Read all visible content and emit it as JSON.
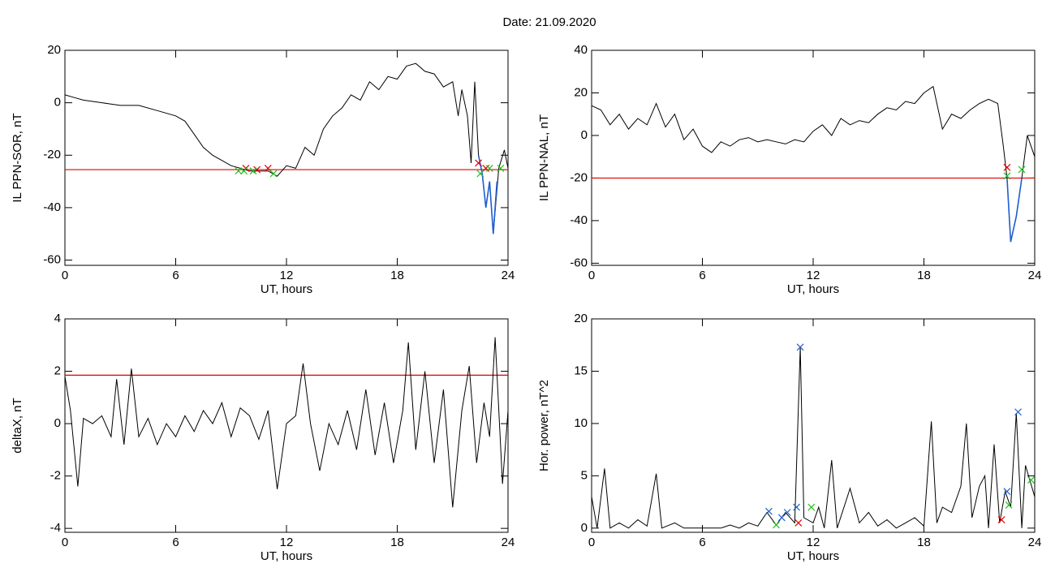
{
  "title": "Date:  21.09.2020",
  "chart_data": [
    {
      "type": "line",
      "xlabel": "UT, hours",
      "ylabel": "IL PPN-SOR, nT",
      "xlim": [
        0,
        24
      ],
      "xticks": [
        0,
        6,
        12,
        18,
        24
      ],
      "ylim": [
        -62,
        20
      ],
      "yticks": [
        -60,
        -40,
        -20,
        0,
        20
      ],
      "threshold": -25.5,
      "threshold_color": "#e00000",
      "series": [
        {
          "marker": "line",
          "color": "#000000",
          "x": [
            0,
            0.5,
            1,
            2,
            3,
            4,
            5,
            6,
            6.5,
            7,
            7.5,
            8,
            8.5,
            9,
            9.5,
            10,
            10.5,
            11,
            11.5,
            12,
            12.5,
            13,
            13.5,
            14,
            14.5,
            15,
            15.5,
            16,
            16.5,
            17,
            17.5,
            18,
            18.5,
            19,
            19.5,
            20,
            20.5,
            21,
            21.3,
            21.5,
            21.8,
            22,
            22.2,
            22.4,
            22.6,
            22.8,
            23,
            23.2,
            23.5,
            23.8,
            24
          ],
          "values": [
            3,
            2,
            1,
            0,
            -1,
            -1,
            -3,
            -5,
            -7,
            -12,
            -17,
            -20,
            -22,
            -24,
            -25,
            -26,
            -26,
            -26,
            -28,
            -24,
            -25,
            -17,
            -20,
            -10,
            -5,
            -2,
            3,
            1,
            8,
            5,
            10,
            9,
            14,
            15,
            12,
            11,
            6,
            8,
            -5,
            5,
            -5,
            -23,
            8,
            -20,
            -27,
            -40,
            -30,
            -50,
            -25,
            -18,
            -25
          ]
        },
        {
          "marker": "line",
          "color": "#1f5fd0",
          "x": [
            22.4,
            22.6,
            22.8,
            23,
            23.2,
            23.4
          ],
          "values": [
            -20,
            -27,
            -40,
            -30,
            -50,
            -30
          ]
        },
        {
          "marker": "cross",
          "color": "#e00000",
          "x": [
            9.8,
            10.4,
            11,
            22.4,
            22.8
          ],
          "values": [
            -25,
            -25.5,
            -25,
            -23,
            -25
          ]
        },
        {
          "marker": "cross",
          "color": "#20c020",
          "x": [
            9.4,
            9.7,
            10.2,
            11.3,
            22.5,
            23,
            23.6
          ],
          "values": [
            -26,
            -26,
            -26,
            -27,
            -27,
            -25,
            -25
          ]
        }
      ]
    },
    {
      "type": "line",
      "xlabel": "UT, hours",
      "ylabel": "IL PPN-NAL, nT",
      "xlim": [
        0,
        24
      ],
      "xticks": [
        0,
        6,
        12,
        18,
        24
      ],
      "ylim": [
        -61,
        40
      ],
      "yticks": [
        -60,
        -40,
        -20,
        0,
        20,
        40
      ],
      "threshold": -20,
      "threshold_color": "#e00000",
      "series": [
        {
          "marker": "line",
          "color": "#000000",
          "x": [
            0,
            0.5,
            1,
            1.5,
            2,
            2.5,
            3,
            3.5,
            4,
            4.5,
            5,
            5.5,
            6,
            6.5,
            7,
            7.5,
            8,
            8.5,
            9,
            9.5,
            10,
            10.5,
            11,
            11.5,
            12,
            12.5,
            13,
            13.5,
            14,
            14.5,
            15,
            15.5,
            16,
            16.5,
            17,
            17.5,
            18,
            18.5,
            19,
            19.5,
            20,
            20.5,
            21,
            21.5,
            22,
            22.3,
            22.5,
            22.7,
            23,
            23.3,
            23.6,
            24
          ],
          "values": [
            14,
            12,
            5,
            10,
            3,
            8,
            5,
            15,
            4,
            10,
            -2,
            3,
            -5,
            -8,
            -3,
            -5,
            -2,
            -1,
            -3,
            -2,
            -3,
            -4,
            -2,
            -3,
            2,
            5,
            0,
            8,
            5,
            7,
            6,
            10,
            13,
            12,
            16,
            15,
            20,
            23,
            3,
            10,
            8,
            12,
            15,
            17,
            15,
            -5,
            -20,
            -50,
            -38,
            -20,
            0,
            -10
          ]
        },
        {
          "marker": "line",
          "color": "#1f5fd0",
          "x": [
            22.5,
            22.7,
            23,
            23.3
          ],
          "values": [
            -20,
            -50,
            -38,
            -20
          ]
        },
        {
          "marker": "cross",
          "color": "#e00000",
          "x": [
            22.5
          ],
          "values": [
            -15
          ]
        },
        {
          "marker": "cross",
          "color": "#20c020",
          "x": [
            22.5,
            23.3
          ],
          "values": [
            -19,
            -16
          ]
        }
      ]
    },
    {
      "type": "line",
      "xlabel": "UT, hours",
      "ylabel": "deltaX, nT",
      "xlim": [
        0,
        24
      ],
      "xticks": [
        0,
        6,
        12,
        18,
        24
      ],
      "ylim": [
        -4.15,
        4
      ],
      "yticks": [
        -4,
        -2,
        0,
        2,
        4
      ],
      "threshold": 1.85,
      "threshold_color": "#e00000",
      "series": [
        {
          "marker": "line",
          "color": "#000000",
          "x": [
            0,
            0.3,
            0.7,
            1,
            1.5,
            2,
            2.5,
            2.8,
            3.2,
            3.6,
            4,
            4.5,
            5,
            5.5,
            6,
            6.5,
            7,
            7.5,
            8,
            8.5,
            9,
            9.5,
            10,
            10.5,
            11,
            11.5,
            12,
            12.5,
            12.9,
            13.3,
            13.8,
            14.3,
            14.8,
            15.3,
            15.8,
            16.3,
            16.8,
            17.3,
            17.8,
            18.3,
            18.6,
            19,
            19.5,
            20,
            20.5,
            21,
            21.5,
            21.9,
            22.3,
            22.7,
            23,
            23.3,
            23.7,
            24
          ],
          "values": [
            1.8,
            0.5,
            -2.4,
            0.2,
            0,
            0.3,
            -0.5,
            1.7,
            -0.8,
            2.1,
            -0.5,
            0.2,
            -0.8,
            0,
            -0.5,
            0.3,
            -0.3,
            0.5,
            0,
            0.8,
            -0.5,
            0.6,
            0.3,
            -0.6,
            0.5,
            -2.5,
            0,
            0.3,
            2.3,
            0,
            -1.8,
            0,
            -0.8,
            0.5,
            -1,
            1.3,
            -1.2,
            0.8,
            -1.5,
            0.5,
            3.1,
            -1,
            2,
            -1.5,
            1.3,
            -3.2,
            0.5,
            2.2,
            -1.5,
            0.8,
            -0.5,
            3.3,
            -2.3,
            0.5
          ]
        }
      ]
    },
    {
      "type": "line",
      "xlabel": "UT, hours",
      "ylabel": "Hor. power, nT^2",
      "xlim": [
        0,
        24
      ],
      "xticks": [
        0,
        6,
        12,
        18,
        24
      ],
      "ylim": [
        -0.4,
        20
      ],
      "yticks": [
        0,
        5,
        10,
        15,
        20
      ],
      "series": [
        {
          "marker": "line",
          "color": "#000000",
          "x": [
            0,
            0.3,
            0.7,
            1,
            1.5,
            2,
            2.5,
            3,
            3.5,
            3.8,
            4.5,
            5,
            6,
            7,
            7.5,
            8,
            8.5,
            9,
            9.5,
            10,
            10.5,
            11,
            11.3,
            11.5,
            12,
            12.3,
            12.6,
            13,
            13.3,
            14,
            14.5,
            15,
            15.5,
            16,
            16.5,
            17,
            17.5,
            18,
            18.4,
            18.7,
            19,
            19.5,
            20,
            20.3,
            20.6,
            21,
            21.3,
            21.5,
            21.8,
            22.1,
            22.4,
            22.7,
            23,
            23.3,
            23.5,
            24
          ],
          "values": [
            3,
            0,
            5.7,
            0,
            0.5,
            0,
            0.8,
            0.2,
            5.2,
            0,
            0.5,
            0,
            0,
            0,
            0.3,
            0,
            0.5,
            0.2,
            1.5,
            0.3,
            1.5,
            0.5,
            17.3,
            1,
            0.5,
            2,
            0,
            6.5,
            0,
            3.8,
            0.5,
            1.5,
            0.2,
            0.8,
            0,
            0.5,
            1,
            0.2,
            10.2,
            0.5,
            2,
            1.5,
            4,
            10,
            1,
            4,
            5,
            0,
            8,
            0.5,
            3.5,
            2,
            11,
            0,
            6,
            3
          ]
        },
        {
          "marker": "cross",
          "color": "#1f5fd0",
          "x": [
            9.6,
            10.3,
            10.6,
            11.1,
            11.3,
            22.5,
            23.1
          ],
          "values": [
            1.6,
            1,
            1.5,
            2,
            17.3,
            3.5,
            11.1
          ]
        },
        {
          "marker": "cross",
          "color": "#e00000",
          "x": [
            11.2,
            22.2
          ],
          "values": [
            0.5,
            0.8
          ]
        },
        {
          "marker": "cross",
          "color": "#20c020",
          "x": [
            10,
            11.9,
            22.6,
            23.8
          ],
          "values": [
            0.3,
            2,
            2.2,
            4.6
          ]
        }
      ]
    }
  ]
}
